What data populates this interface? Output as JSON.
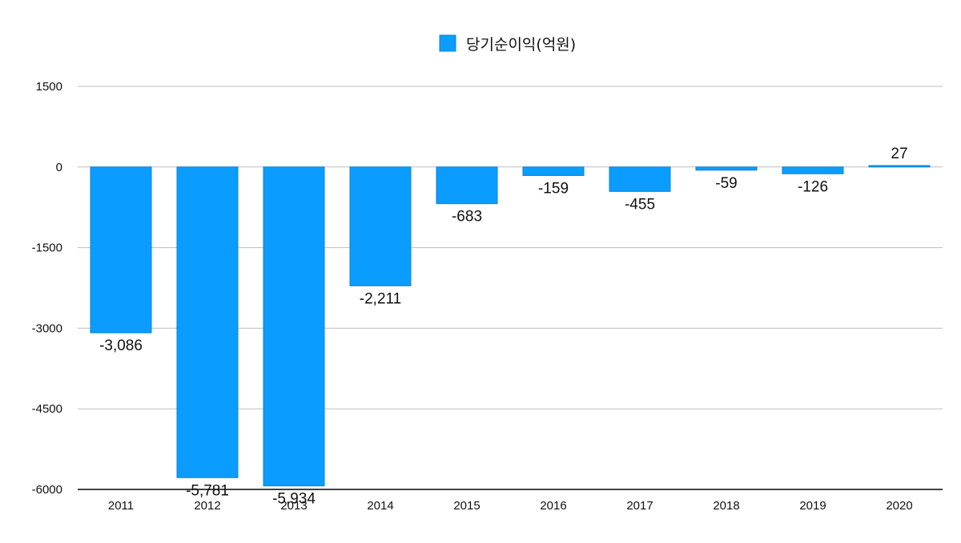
{
  "chart_data": {
    "type": "bar",
    "title": "",
    "xlabel": "",
    "ylabel": "",
    "legend": {
      "label": "당기순이익(억원)",
      "position": "top"
    },
    "categories": [
      "2011",
      "2012",
      "2013",
      "2014",
      "2015",
      "2016",
      "2017",
      "2018",
      "2019",
      "2020"
    ],
    "series": [
      {
        "name": "당기순이익(억원)",
        "values": [
          -3086,
          -5781,
          -5934,
          -2211,
          -683,
          -159,
          -455,
          -59,
          -126,
          27
        ],
        "labels": [
          "-3,086",
          "-5,781",
          "-5,934",
          "-2,211",
          "-683",
          "-159",
          "-455",
          "-59",
          "-126",
          "27"
        ]
      }
    ],
    "ylim": [
      -6000,
      1500
    ],
    "yticks": [
      1500,
      0,
      -1500,
      -3000,
      -4500,
      -6000
    ],
    "grid": true,
    "colors": {
      "bar": "#0A9DFF",
      "bar_edge": "#0A84D8",
      "grid": "#BDBDBD",
      "axis": "#000000"
    }
  }
}
